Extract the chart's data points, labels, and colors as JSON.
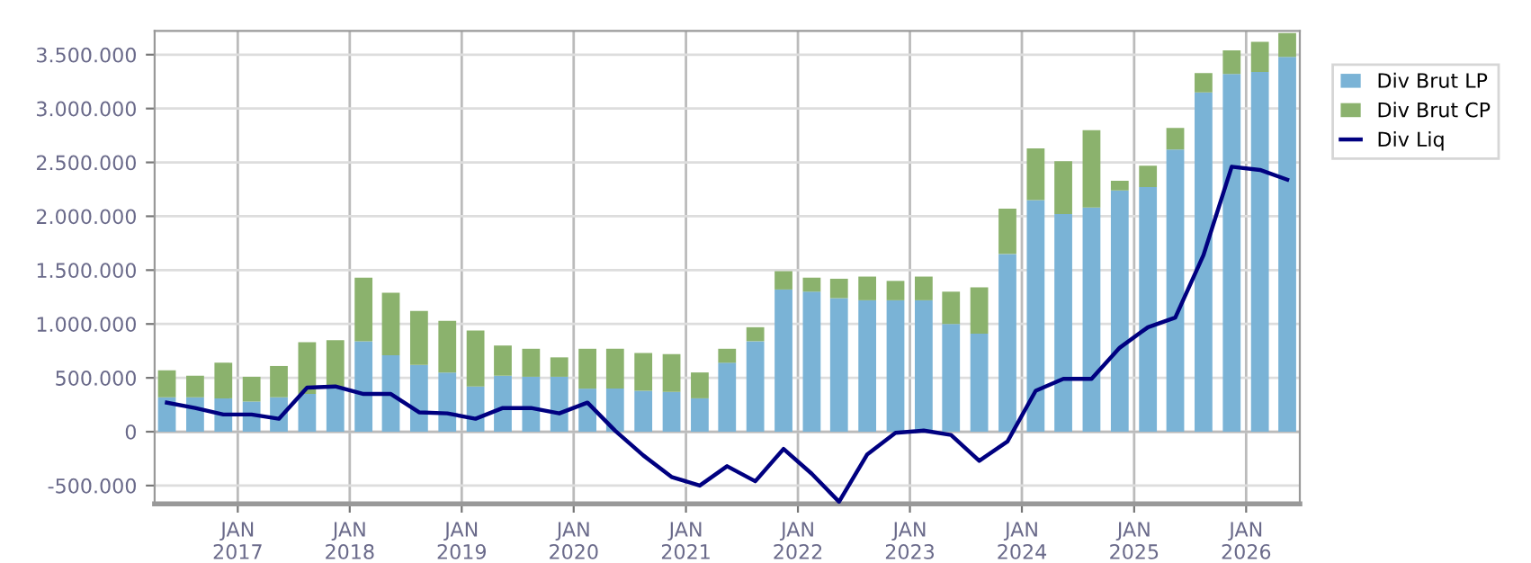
{
  "chart_data": {
    "type": "bar",
    "stacked": true,
    "x": [
      "2016-05-15",
      "2016-08-15",
      "2016-11-15",
      "2017-02-15",
      "2017-05-15",
      "2017-08-15",
      "2017-11-15",
      "2018-02-15",
      "2018-05-15",
      "2018-08-15",
      "2018-11-15",
      "2019-02-15",
      "2019-05-15",
      "2019-08-15",
      "2019-11-15",
      "2020-02-15",
      "2020-05-15",
      "2020-08-15",
      "2020-11-15",
      "2021-02-15",
      "2021-05-15",
      "2021-08-15",
      "2021-11-15",
      "2022-02-15",
      "2022-05-15",
      "2022-08-15",
      "2022-11-15",
      "2023-02-15",
      "2023-05-15",
      "2023-08-15",
      "2023-11-15",
      "2024-02-15",
      "2024-05-15",
      "2024-08-15",
      "2024-11-15",
      "2025-02-15",
      "2025-05-15",
      "2025-08-15",
      "2025-11-15",
      "2026-02-15",
      "2026-05-15"
    ],
    "series": [
      {
        "name": "Div Brut LP",
        "color": "#7ab3d6",
        "values": [
          320000,
          320000,
          310000,
          280000,
          320000,
          350000,
          410000,
          840000,
          710000,
          620000,
          550000,
          420000,
          520000,
          510000,
          510000,
          400000,
          400000,
          380000,
          370000,
          310000,
          640000,
          840000,
          1320000,
          1300000,
          1240000,
          1220000,
          1220000,
          1220000,
          1000000,
          910000,
          1650000,
          2150000,
          2020000,
          2080000,
          2240000,
          2270000,
          2620000,
          3150000,
          3320000,
          3340000,
          3480000
        ]
      },
      {
        "name": "Div Brut CP",
        "color": "#8bb26d",
        "values": [
          250000,
          200000,
          330000,
          230000,
          290000,
          480000,
          440000,
          590000,
          580000,
          500000,
          480000,
          520000,
          280000,
          260000,
          180000,
          370000,
          370000,
          350000,
          350000,
          240000,
          130000,
          130000,
          170000,
          130000,
          180000,
          220000,
          180000,
          220000,
          300000,
          430000,
          420000,
          480000,
          490000,
          720000,
          90000,
          200000,
          200000,
          180000,
          220000,
          280000,
          220000
        ]
      },
      {
        "name": "Div Liq",
        "type": "line",
        "color": "#000080",
        "values": [
          270000,
          220000,
          160000,
          160000,
          120000,
          410000,
          420000,
          350000,
          350000,
          180000,
          170000,
          120000,
          220000,
          220000,
          170000,
          270000,
          10000,
          -220000,
          -420000,
          -500000,
          -320000,
          -460000,
          -160000,
          -390000,
          -650000,
          -210000,
          -10000,
          10000,
          -30000,
          -270000,
          -90000,
          380000,
          490000,
          490000,
          780000,
          970000,
          1060000,
          1640000,
          2460000,
          2430000,
          2340000
        ]
      }
    ],
    "xlim": [
      "2016-04-05",
      "2026-06-25"
    ],
    "xticks": [
      {
        "value": "2017-01-01",
        "label": "JAN\n2017"
      },
      {
        "value": "2018-01-01",
        "label": "JAN\n2018"
      },
      {
        "value": "2019-01-01",
        "label": "JAN\n2019"
      },
      {
        "value": "2020-01-01",
        "label": "JAN\n2020"
      },
      {
        "value": "2021-01-01",
        "label": "JAN\n2021"
      },
      {
        "value": "2022-01-01",
        "label": "JAN\n2022"
      },
      {
        "value": "2023-01-01",
        "label": "JAN\n2023"
      },
      {
        "value": "2024-01-01",
        "label": "JAN\n2024"
      },
      {
        "value": "2025-01-01",
        "label": "JAN\n2025"
      },
      {
        "value": "2026-01-01",
        "label": "JAN\n2026"
      }
    ],
    "ylim": [
      -670000,
      3720000
    ],
    "yticks": [
      {
        "value": -500000,
        "label": "-500.000"
      },
      {
        "value": 0,
        "label": "0"
      },
      {
        "value": 500000,
        "label": "500.000"
      },
      {
        "value": 1000000,
        "label": "1.000.000"
      },
      {
        "value": 1500000,
        "label": "1.500.000"
      },
      {
        "value": 2000000,
        "label": "2.000.000"
      },
      {
        "value": 2500000,
        "label": "2.500.000"
      },
      {
        "value": 3000000,
        "label": "3.000.000"
      },
      {
        "value": 3500000,
        "label": "3.500.000"
      }
    ],
    "grid": true,
    "legend": "right",
    "line_style": "solid"
  }
}
